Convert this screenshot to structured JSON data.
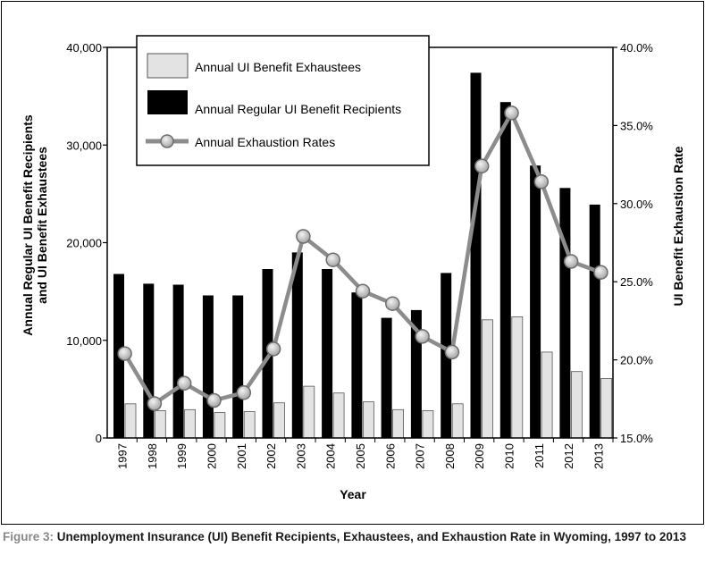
{
  "chart_data": {
    "type": "bar",
    "x_title": "Year",
    "y_left_title_lines": [
      "Annual Regular UI Benefit Recipients",
      "and UI Benefit Exhaustees"
    ],
    "y_right_title": "UI Benefit Exhaustion Rate",
    "y_left_ticks": [
      "0",
      "10,000",
      "20,000",
      "30,000",
      "40,000"
    ],
    "y_left_range": [
      0,
      40000
    ],
    "y_right_ticks": [
      "15.0%",
      "20.0%",
      "25.0%",
      "30.0%",
      "35.0%",
      "40.0%"
    ],
    "y_right_range": [
      15,
      40
    ],
    "categories": [
      "1997",
      "1998",
      "1999",
      "2000",
      "2001",
      "2002",
      "2003",
      "2004",
      "2005",
      "2006",
      "2007",
      "2008",
      "2009",
      "2010",
      "2011",
      "2012",
      "2013"
    ],
    "series": [
      {
        "name": "Annual Regular UI Benefit Recipients",
        "axis": "left",
        "kind": "bar",
        "color": "#000000",
        "values": [
          16800,
          15800,
          15700,
          14600,
          14600,
          17300,
          19000,
          17300,
          14900,
          12300,
          13100,
          16900,
          37400,
          34400,
          27900,
          25600,
          23900
        ]
      },
      {
        "name": "Annual UI Benefit Exhaustees",
        "axis": "left",
        "kind": "bar",
        "color": "#e3e3e3",
        "values": [
          3500,
          2800,
          2900,
          2600,
          2700,
          3600,
          5300,
          4600,
          3700,
          2900,
          2800,
          3500,
          12100,
          12400,
          8800,
          6800,
          6100
        ]
      },
      {
        "name": "Annual Exhaustion Rates",
        "axis": "right",
        "kind": "line",
        "color": "#8c8c8c",
        "values": [
          20.4,
          17.2,
          18.5,
          17.4,
          17.9,
          20.7,
          27.9,
          26.4,
          24.4,
          23.6,
          21.5,
          20.5,
          32.4,
          35.8,
          31.4,
          26.3,
          25.6
        ]
      }
    ],
    "legend_order": [
      "Annual UI Benefit Exhaustees",
      "Annual Regular UI Benefit Recipients",
      "Annual Exhaustion Rates"
    ],
    "legend_position": "top-left",
    "grid": false
  },
  "caption": {
    "label": "Figure 3:",
    "text": " Unemployment Insurance (UI) Benefit Recipients, Exhaustees, and Exhaustion Rate in Wyoming, 1997 to 2013"
  }
}
